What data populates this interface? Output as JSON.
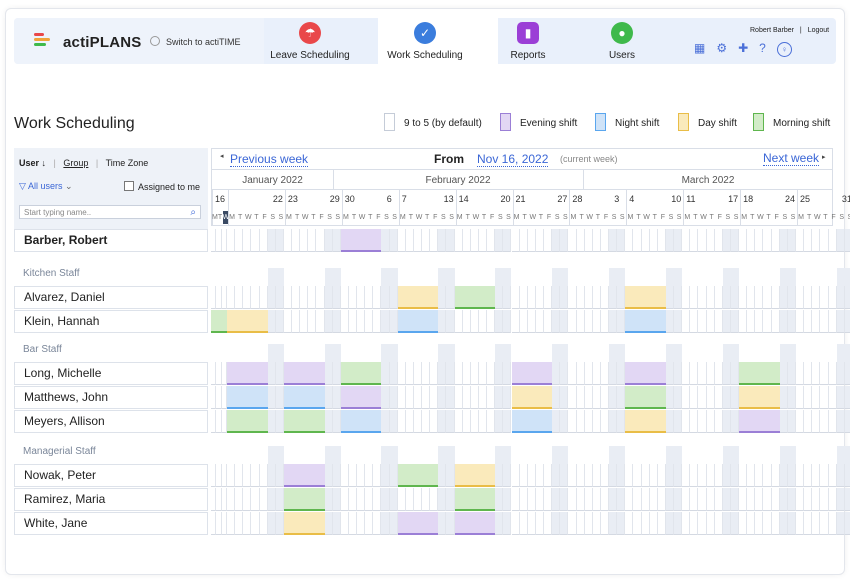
{
  "app": {
    "brand": "actiPLANS",
    "switch_label": "Switch to actiTIME",
    "user_name": "Robert Barber",
    "logout_label": "Logout"
  },
  "nav": [
    {
      "label": "Leave Scheduling",
      "color": "#e9484a",
      "icon": "umbrella-icon"
    },
    {
      "label": "Work Scheduling",
      "color": "#3b7ddd",
      "icon": "check-badge-icon"
    },
    {
      "label": "Reports",
      "color": "#9b3fd6",
      "icon": "chart-icon"
    },
    {
      "label": "Users",
      "color": "#3fb94b",
      "icon": "user-icon"
    }
  ],
  "page": {
    "title": "Work Scheduling"
  },
  "legend": [
    {
      "label": "9 to 5 (by default)",
      "fill": "#ffffff",
      "border": "#c5ccd8"
    },
    {
      "label": "Evening shift",
      "fill": "#e2d7f4",
      "border": "#9b7fd6"
    },
    {
      "label": "Night shift",
      "fill": "#cfe3f8",
      "border": "#5aa6ee"
    },
    {
      "label": "Day shift",
      "fill": "#faeabb",
      "border": "#e9bd47"
    },
    {
      "label": "Morning shift",
      "fill": "#d2ecc8",
      "border": "#5fb64e"
    }
  ],
  "filters": {
    "user_tab": "User ↓",
    "group_tab": "Group",
    "timezone_tab": "Time Zone",
    "all_users": "All users",
    "assigned_to_me": "Assigned to me",
    "search_placeholder": "Start typing name.."
  },
  "calendar": {
    "prev_week": "Previous week",
    "next_week": "Next week",
    "from_label": "From",
    "from_date": "Nov 16, 2022",
    "current_note": "(current week)",
    "months": [
      "January 2022",
      "February 2022",
      "March 2022"
    ],
    "weeks": [
      {
        "start": "16",
        "end": ""
      },
      {
        "start": "",
        "end": "22"
      },
      {
        "start": "23",
        "end": "29"
      },
      {
        "start": "30",
        "end": "6"
      },
      {
        "start": "7",
        "end": "13"
      },
      {
        "start": "14",
        "end": "20"
      },
      {
        "start": "21",
        "end": "27"
      },
      {
        "start": "28",
        "end": "3"
      },
      {
        "start": "4",
        "end": "10"
      },
      {
        "start": "11",
        "end": "17"
      },
      {
        "start": "18",
        "end": "24"
      },
      {
        "start": "25",
        "end": "31"
      }
    ],
    "day_letters": [
      "M",
      "T",
      "W",
      "T",
      "F",
      "S",
      "S"
    ]
  },
  "current_user": {
    "name": "Barber, Robert",
    "shifts": [
      "",
      "",
      "",
      "evening",
      "",
      "",
      "",
      "",
      "",
      "",
      "",
      ""
    ]
  },
  "groups": [
    {
      "name": "Kitchen Staff",
      "members": [
        {
          "name": "Alvarez, Daniel",
          "shifts": [
            "",
            "",
            "",
            "",
            "day",
            "morning",
            "",
            "",
            "day",
            "",
            "",
            ""
          ]
        },
        {
          "name": "Klein, Hannah",
          "shifts": [
            "morning",
            "day",
            "",
            "",
            "night",
            "",
            "",
            "",
            "night",
            "",
            "",
            ""
          ]
        }
      ]
    },
    {
      "name": "Bar Staff",
      "members": [
        {
          "name": "Long, Michelle",
          "shifts": [
            "",
            "evening",
            "evening",
            "morning",
            "",
            "",
            "evening",
            "",
            "evening",
            "",
            "morning",
            ""
          ]
        },
        {
          "name": "Matthews, John",
          "shifts": [
            "",
            "night",
            "night",
            "evening",
            "",
            "",
            "day",
            "",
            "morning",
            "",
            "day",
            ""
          ]
        },
        {
          "name": "Meyers, Allison",
          "shifts": [
            "",
            "morning",
            "morning",
            "night",
            "",
            "",
            "night",
            "",
            "day",
            "",
            "evening",
            ""
          ]
        }
      ]
    },
    {
      "name": "Managerial Staff",
      "members": [
        {
          "name": "Nowak, Peter",
          "shifts": [
            "",
            "",
            "evening",
            "",
            "morning",
            "day",
            "",
            "",
            "",
            "",
            "",
            ""
          ]
        },
        {
          "name": "Ramirez, Maria",
          "shifts": [
            "",
            "",
            "morning",
            "",
            "",
            "morning",
            "",
            "",
            "",
            "",
            "",
            ""
          ]
        },
        {
          "name": "White, Jane",
          "shifts": [
            "",
            "",
            "day",
            "",
            "evening",
            "evening",
            "",
            "",
            "",
            "",
            "",
            ""
          ]
        }
      ]
    }
  ]
}
